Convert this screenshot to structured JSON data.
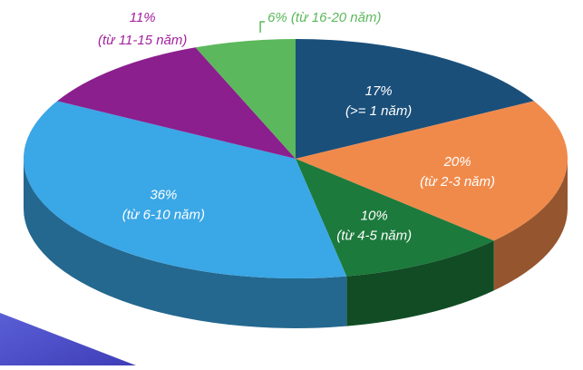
{
  "chart_data": {
    "type": "pie",
    "style": "3d",
    "start_position": "top",
    "direction": "clockwise",
    "slices": [
      {
        "label_pct": "17%",
        "label_desc": "(>= 1 năm)",
        "value": 17,
        "color": "#1a4f7a",
        "text_color": "#ffffff"
      },
      {
        "label_pct": "20%",
        "label_desc": "(từ 2-3 năm)",
        "value": 20,
        "color": "#f08a4b",
        "text_color": "#ffffff"
      },
      {
        "label_pct": "10%",
        "label_desc": "(từ 4-5 năm)",
        "value": 10,
        "color": "#1c7a3c",
        "text_color": "#ffffff"
      },
      {
        "label_pct": "36%",
        "label_desc": "(từ 6-10 năm)",
        "value": 36,
        "color": "#3aa7e6",
        "text_color": "#ffffff"
      },
      {
        "label_pct": "11%",
        "label_desc": "(từ 11-15 năm)",
        "value": 11,
        "color": "#8b1f8e",
        "text_color": "#a3239e"
      },
      {
        "label_pct": "6%",
        "label_desc": "(từ 16-20 năm)",
        "value": 6,
        "color": "#5cb85c",
        "text_color": "#5cb85c"
      }
    ]
  }
}
